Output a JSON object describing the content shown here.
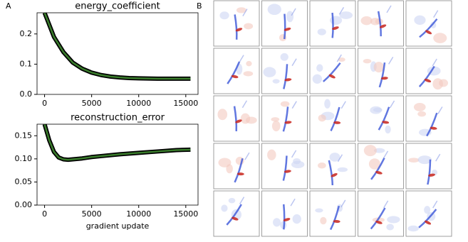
{
  "panel_labels": {
    "a": "A",
    "b": "B"
  },
  "chart_data": [
    {
      "type": "line",
      "title": "energy_coefficient",
      "x": [
        0,
        1000,
        2000,
        3000,
        4000,
        5000,
        6000,
        7000,
        8000,
        9000,
        10000,
        12000,
        14000,
        15500
      ],
      "series": [
        {
          "color": "#000000",
          "values": [
            0.27,
            0.19,
            0.14,
            0.105,
            0.085,
            0.072,
            0.064,
            0.059,
            0.056,
            0.054,
            0.053,
            0.052,
            0.052,
            0.052
          ]
        },
        {
          "color": "#3a7d2c",
          "values": [
            0.27,
            0.19,
            0.14,
            0.105,
            0.085,
            0.072,
            0.064,
            0.059,
            0.056,
            0.054,
            0.053,
            0.052,
            0.052,
            0.052
          ]
        }
      ],
      "xlim": [
        -800,
        16300
      ],
      "ylim": [
        0,
        0.27
      ],
      "xticks": [
        0,
        5000,
        10000,
        15000
      ],
      "yticks": [
        {
          "value": 0,
          "label": "0.0"
        },
        0.1,
        0.2
      ]
    },
    {
      "type": "line",
      "title": "reconstruction_error",
      "x_label": "gradient update",
      "x": [
        0,
        500,
        1000,
        1500,
        2000,
        2500,
        3000,
        4000,
        5000,
        6000,
        8000,
        10000,
        12000,
        14000,
        15500
      ],
      "series": [
        {
          "color": "#000000",
          "values": [
            0.175,
            0.14,
            0.115,
            0.103,
            0.099,
            0.098,
            0.099,
            0.101,
            0.104,
            0.106,
            0.11,
            0.113,
            0.116,
            0.119,
            0.12
          ]
        },
        {
          "color": "#3a7d2c",
          "values": [
            0.175,
            0.14,
            0.115,
            0.103,
            0.099,
            0.098,
            0.099,
            0.101,
            0.104,
            0.106,
            0.11,
            0.113,
            0.116,
            0.119,
            0.12
          ]
        }
      ],
      "xlim": [
        -800,
        16300
      ],
      "ylim": [
        0,
        0.175
      ],
      "xticks": [
        0,
        5000,
        10000,
        15000
      ],
      "yticks": [
        {
          "value": 0,
          "label": "0.00"
        },
        0.05,
        {
          "value": 0.1,
          "label": "0.10"
        },
        0.15
      ]
    }
  ]
}
